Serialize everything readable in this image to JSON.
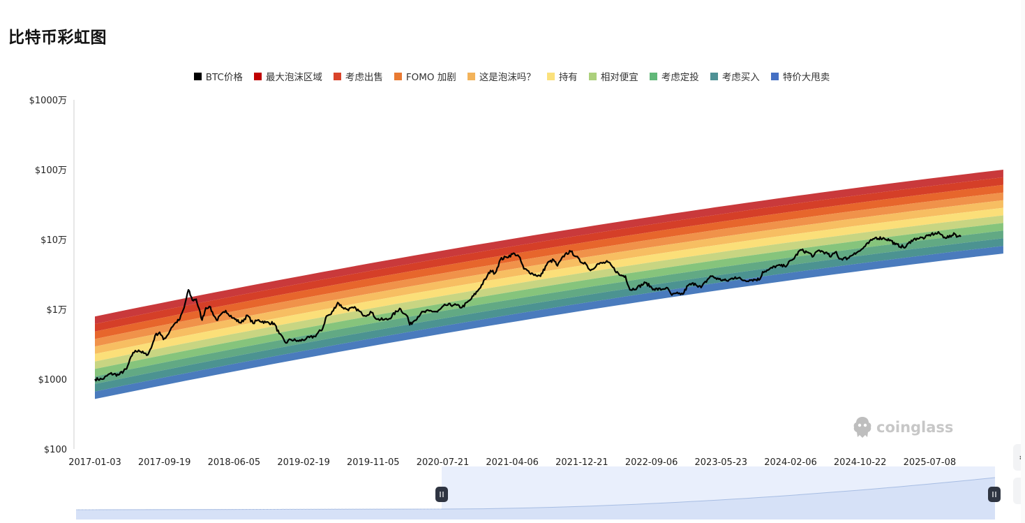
{
  "title": "比特币彩虹图",
  "watermark": "coinglass",
  "colors": {
    "btc": "#000000",
    "bands": [
      "#c9393b",
      "#d53f28",
      "#e7662c",
      "#f0924a",
      "#f7be62",
      "#fbdf79",
      "#c8d582",
      "#86c47c",
      "#62a984",
      "#4c9391",
      "#4a7bbd"
    ],
    "legend": [
      "#000000",
      "#c00000",
      "#d9432a",
      "#e97a32",
      "#f3b35a",
      "#fbe17c",
      "#acd07c",
      "#62b879",
      "#4f9195",
      "#4570c4"
    ]
  },
  "legend": [
    {
      "label": "BTC价格"
    },
    {
      "label": "最大泡沫区域"
    },
    {
      "label": "考虑出售"
    },
    {
      "label": "FOMO 加剧"
    },
    {
      "label": "这是泡沫吗？"
    },
    {
      "label": "持有"
    },
    {
      "label": "相对便宜"
    },
    {
      "label": "考虑定投"
    },
    {
      "label": "考虑买入"
    },
    {
      "label": "特价大甩卖"
    }
  ],
  "chart_data": {
    "type": "area",
    "title": "比特币彩虹图",
    "y_scale": "log",
    "ylim": [
      100,
      10000000
    ],
    "y_ticks": [
      {
        "value": 10000000,
        "label": "$1000万"
      },
      {
        "value": 1000000,
        "label": "$100万"
      },
      {
        "value": 100000,
        "label": "$10万"
      },
      {
        "value": 10000,
        "label": "$1万"
      },
      {
        "value": 1000,
        "label": "$1000"
      },
      {
        "value": 100,
        "label": "$100"
      }
    ],
    "x_ticks": [
      "2017-01-03",
      "2017-09-19",
      "2018-06-05",
      "2019-02-19",
      "2019-11-05",
      "2020-07-21",
      "2021-04-06",
      "2021-12-21",
      "2022-09-06",
      "2023-05-23",
      "2024-02-06",
      "2024-10-22",
      "2025-07-08"
    ],
    "xlim": [
      "2017-01-03",
      "2026-04-08"
    ],
    "bands": {
      "x": [
        "2017-01-03",
        "2026-04-08"
      ],
      "top_start": 7900,
      "top_end": 1000000,
      "bottom_start": 520,
      "bottom_end": 63000
    },
    "btc_series": {
      "name": "BTC价格",
      "x": [
        "2017-01-03",
        "2017-02-01",
        "2017-03-01",
        "2017-04-01",
        "2017-05-01",
        "2017-05-25",
        "2017-06-15",
        "2017-07-15",
        "2017-08-01",
        "2017-08-15",
        "2017-09-01",
        "2017-09-15",
        "2017-10-01",
        "2017-10-15",
        "2017-11-01",
        "2017-11-15",
        "2017-12-01",
        "2017-12-17",
        "2018-01-01",
        "2018-01-15",
        "2018-02-06",
        "2018-02-20",
        "2018-03-05",
        "2018-04-01",
        "2018-05-05",
        "2018-06-01",
        "2018-07-01",
        "2018-07-25",
        "2018-08-15",
        "2018-09-01",
        "2018-10-01",
        "2018-11-01",
        "2018-11-20",
        "2018-12-15",
        "2019-01-01",
        "2019-02-01",
        "2019-03-01",
        "2019-04-01",
        "2019-05-01",
        "2019-05-15",
        "2019-06-01",
        "2019-06-26",
        "2019-07-15",
        "2019-08-01",
        "2019-09-01",
        "2019-09-25",
        "2019-10-15",
        "2019-10-26",
        "2019-11-20",
        "2019-12-15",
        "2020-01-01",
        "2020-02-12",
        "2020-03-01",
        "2020-03-12",
        "2020-03-20",
        "2020-04-01",
        "2020-05-01",
        "2020-06-01",
        "2020-07-01",
        "2020-08-01",
        "2020-09-01",
        "2020-10-01",
        "2020-11-01",
        "2020-12-01",
        "2021-01-01",
        "2021-01-15",
        "2021-02-01",
        "2021-02-21",
        "2021-03-15",
        "2021-04-14",
        "2021-05-01",
        "2021-05-19",
        "2021-06-01",
        "2021-06-22",
        "2021-07-20",
        "2021-08-15",
        "2021-09-07",
        "2021-09-21",
        "2021-10-20",
        "2021-11-10",
        "2021-12-01",
        "2021-12-15",
        "2022-01-01",
        "2022-01-22",
        "2022-02-15",
        "2022-03-28",
        "2022-04-15",
        "2022-05-10",
        "2022-06-01",
        "2022-06-18",
        "2022-07-15",
        "2022-08-15",
        "2022-09-15",
        "2022-10-15",
        "2022-11-01",
        "2022-11-21",
        "2022-12-15",
        "2023-01-01",
        "2023-01-20",
        "2023-02-15",
        "2023-03-10",
        "2023-04-14",
        "2023-05-15",
        "2023-06-15",
        "2023-07-15",
        "2023-08-17",
        "2023-09-15",
        "2023-10-15",
        "2023-10-25",
        "2023-11-15",
        "2023-12-15",
        "2024-01-15",
        "2024-02-15",
        "2024-03-14",
        "2024-04-15",
        "2024-05-01",
        "2024-05-20",
        "2024-06-15",
        "2024-07-05",
        "2024-07-25",
        "2024-08-05",
        "2024-09-06",
        "2024-10-01",
        "2024-10-20",
        "2024-11-10",
        "2024-12-05",
        "2024-12-17",
        "2025-01-20",
        "2025-02-15",
        "2025-03-01",
        "2025-04-08",
        "2025-05-01",
        "2025-05-22",
        "2025-06-20",
        "2025-07-14",
        "2025-08-13",
        "2025-09-01",
        "2025-09-25",
        "2025-10-06",
        "2025-10-20",
        "2025-11-01"
      ],
      "values": [
        1000,
        1000,
        1200,
        1150,
        1400,
        2400,
        2600,
        2200,
        2800,
        4200,
        4700,
        3700,
        4300,
        5500,
        6500,
        7200,
        10500,
        19000,
        13500,
        14000,
        7000,
        10500,
        11000,
        7000,
        9600,
        7500,
        6400,
        8200,
        6300,
        7000,
        6500,
        6300,
        4500,
        3300,
        3700,
        3500,
        3800,
        4100,
        5300,
        8000,
        8500,
        12500,
        10600,
        10000,
        10400,
        8500,
        8300,
        9300,
        7200,
        7100,
        7200,
        10300,
        8600,
        7900,
        6000,
        6600,
        8800,
        9500,
        9200,
        11500,
        11600,
        10700,
        13700,
        19000,
        29000,
        36000,
        33000,
        52000,
        56000,
        63000,
        57000,
        38000,
        36000,
        32000,
        29800,
        46000,
        51000,
        42000,
        62000,
        67000,
        57000,
        48000,
        47000,
        36000,
        44000,
        47500,
        40000,
        31000,
        30000,
        19000,
        20500,
        24000,
        19500,
        19300,
        20500,
        16000,
        16800,
        16500,
        22000,
        23500,
        20500,
        30000,
        27000,
        25500,
        29000,
        26000,
        26500,
        27000,
        34500,
        36500,
        42000,
        41500,
        52000,
        71000,
        64000,
        57500,
        70000,
        65000,
        56500,
        67000,
        53000,
        54000,
        64000,
        68000,
        80000,
        98000,
        106000,
        104000,
        96000,
        85000,
        77000,
        97000,
        104000,
        106000,
        119000,
        123000,
        108000,
        109000,
        124000,
        111000,
        110000
      ]
    }
  }
}
